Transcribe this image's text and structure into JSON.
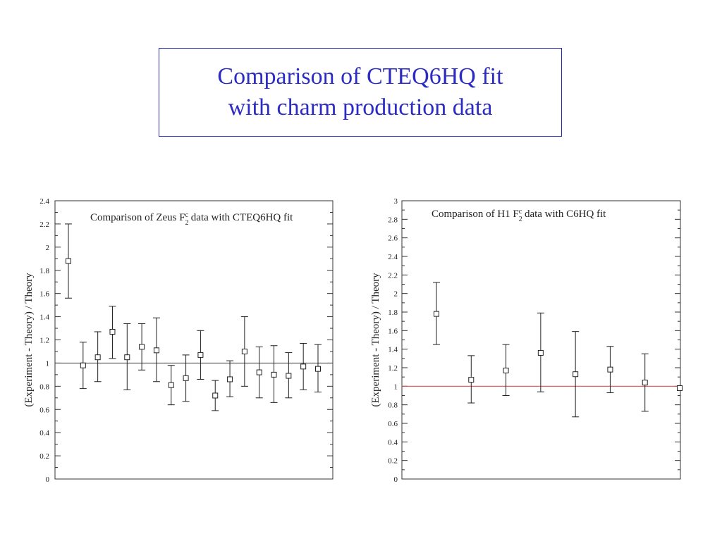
{
  "slide": {
    "title_line1": "Comparison of CTEQ6HQ fit",
    "title_line2": "with charm production data"
  },
  "chart_data": [
    {
      "type": "scatter",
      "title_prefix": "Comparison of Zeus F",
      "title_sub": "2",
      "title_sup": "c",
      "title_suffix": " data with CTEQ6HQ fit",
      "ylabel": "(Experiment - Theory) / Theory",
      "xlabel": "",
      "ylim": [
        0,
        2.4
      ],
      "yticks": [
        "0",
        "0.2",
        "0.4",
        "0.6",
        "0.8",
        "1",
        "1.2",
        "1.4",
        "1.6",
        "1.8",
        "2",
        "2.2",
        "2.4"
      ],
      "reference_line": 1,
      "reference_color": "#555555",
      "grid": false,
      "series": [
        {
          "points": [
            {
              "y": 1.88,
              "lo": 1.56,
              "hi": 2.2
            },
            {
              "y": 0.98,
              "lo": 0.78,
              "hi": 1.18
            },
            {
              "y": 1.05,
              "lo": 0.84,
              "hi": 1.27
            },
            {
              "y": 1.27,
              "lo": 1.04,
              "hi": 1.49
            },
            {
              "y": 1.05,
              "lo": 0.77,
              "hi": 1.34
            },
            {
              "y": 1.14,
              "lo": 0.94,
              "hi": 1.34
            },
            {
              "y": 1.11,
              "lo": 0.84,
              "hi": 1.39
            },
            {
              "y": 0.81,
              "lo": 0.64,
              "hi": 0.98
            },
            {
              "y": 0.87,
              "lo": 0.67,
              "hi": 1.07
            },
            {
              "y": 1.07,
              "lo": 0.86,
              "hi": 1.28
            },
            {
              "y": 0.72,
              "lo": 0.59,
              "hi": 0.85
            },
            {
              "y": 0.86,
              "lo": 0.71,
              "hi": 1.02
            },
            {
              "y": 1.1,
              "lo": 0.8,
              "hi": 1.4
            },
            {
              "y": 0.92,
              "lo": 0.7,
              "hi": 1.14
            },
            {
              "y": 0.9,
              "lo": 0.66,
              "hi": 1.15
            },
            {
              "y": 0.89,
              "lo": 0.7,
              "hi": 1.09
            },
            {
              "y": 0.97,
              "lo": 0.77,
              "hi": 1.17
            },
            {
              "y": 0.95,
              "lo": 0.75,
              "hi": 1.16
            }
          ]
        }
      ]
    },
    {
      "type": "scatter",
      "title_prefix": "Comparison of H1 F",
      "title_sub": "2",
      "title_sup": "c",
      "title_suffix": " data with C6HQ fit",
      "ylabel": "(Experiment - Theory) / Theory",
      "xlabel": "",
      "ylim": [
        0,
        3
      ],
      "yticks": [
        "0",
        "0.2",
        "0.4",
        "0.6",
        "0.8",
        "1",
        "1.2",
        "1.4",
        "1.6",
        "1.8",
        "2",
        "2.2",
        "2.4",
        "2.6",
        "2.8",
        "3"
      ],
      "reference_line": 1,
      "reference_color": "#e05050",
      "grid": false,
      "series": [
        {
          "points": [
            {
              "y": 1.78,
              "lo": 1.45,
              "hi": 2.12
            },
            {
              "y": 1.07,
              "lo": 0.82,
              "hi": 1.33
            },
            {
              "y": 1.17,
              "lo": 0.9,
              "hi": 1.45
            },
            {
              "y": 1.36,
              "lo": 0.94,
              "hi": 1.79
            },
            {
              "y": 1.13,
              "lo": 0.67,
              "hi": 1.59
            },
            {
              "y": 1.18,
              "lo": 0.93,
              "hi": 1.43
            },
            {
              "y": 1.04,
              "lo": 0.73,
              "hi": 1.35
            },
            {
              "y": 0.98,
              "lo": null,
              "hi": null
            }
          ]
        }
      ]
    }
  ]
}
